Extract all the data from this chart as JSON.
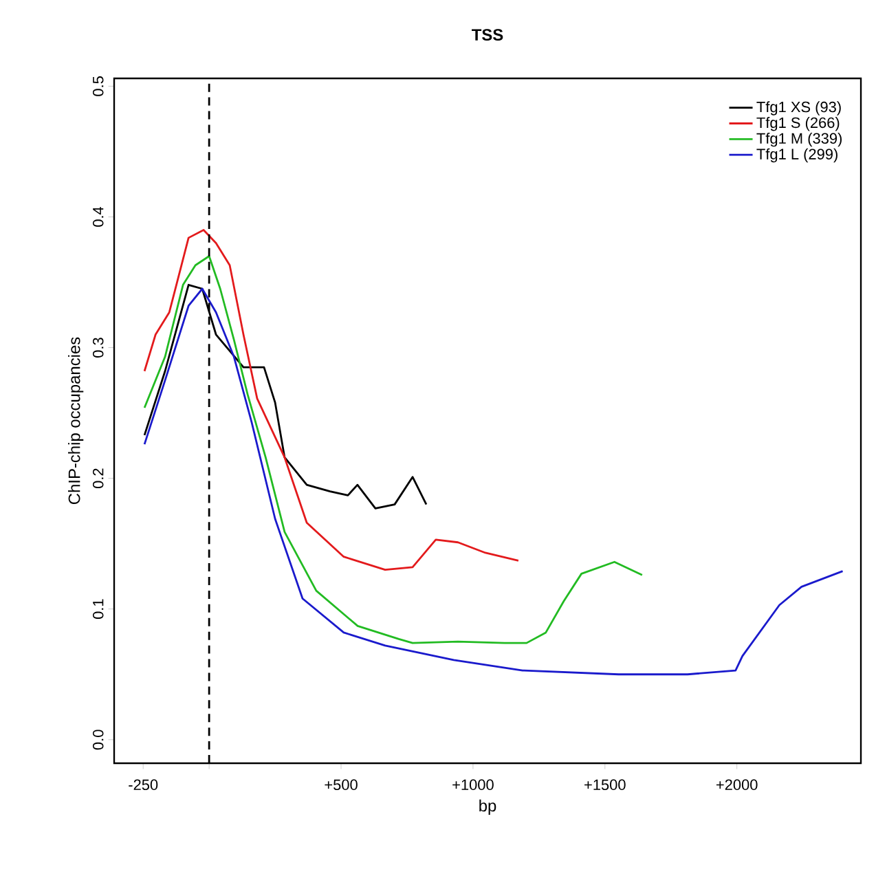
{
  "chart_data": {
    "type": "line",
    "title": "TSS",
    "xlabel": "bp",
    "ylabel": "ChIP-chip occupancies",
    "xlim": [
      -360,
      2470
    ],
    "ylim": [
      -0.018,
      0.506
    ],
    "xticks": [
      {
        "value": -250,
        "label": "-250"
      },
      {
        "value": 0,
        "label": null
      },
      {
        "value": 500,
        "label": "+500"
      },
      {
        "value": 1000,
        "label": "+1000"
      },
      {
        "value": 1500,
        "label": "+1500"
      },
      {
        "value": 2000,
        "label": "+2000"
      }
    ],
    "yticks": [
      {
        "value": 0,
        "label": "0.0"
      },
      {
        "value": 0.1,
        "label": "0.1"
      },
      {
        "value": 0.2,
        "label": "0.2"
      },
      {
        "value": 0.3,
        "label": "0.3"
      },
      {
        "value": 0.4,
        "label": "0.4"
      },
      {
        "value": 0.5,
        "label": "0.5"
      }
    ],
    "grid": false,
    "legend": "top right",
    "line_style": "solid",
    "ref_lines": [
      {
        "axis": "x",
        "value": 0,
        "color": "#000000",
        "line_style": "dashed"
      }
    ],
    "series": [
      {
        "name": "Tfg1 XS (93)",
        "color": "#000000",
        "x": [
          -245,
          -167,
          -78,
          -26,
          26,
          130,
          208,
          250,
          286,
          370,
          458,
          526,
          562,
          630,
          703,
          771,
          823
        ],
        "values": [
          0.233,
          0.282,
          0.348,
          0.345,
          0.31,
          0.285,
          0.285,
          0.258,
          0.216,
          0.195,
          0.19,
          0.187,
          0.195,
          0.177,
          0.18,
          0.201,
          0.18
        ]
      },
      {
        "name": "Tfg1 S (266)",
        "color": "#e31a1c",
        "x": [
          -245,
          -203,
          -151,
          -78,
          -21,
          26,
          78,
          130,
          182,
          286,
          370,
          510,
          667,
          771,
          859,
          943,
          1047,
          1172
        ],
        "values": [
          0.282,
          0.31,
          0.327,
          0.384,
          0.39,
          0.38,
          0.363,
          0.31,
          0.261,
          0.216,
          0.166,
          0.14,
          0.13,
          0.132,
          0.153,
          0.151,
          0.143,
          0.137
        ]
      },
      {
        "name": "Tfg1 M (339)",
        "color": "#22bb22",
        "x": [
          -245,
          -167,
          -99,
          -52,
          0,
          42,
          94,
          146,
          214,
          286,
          406,
          563,
          719,
          771,
          943,
          1120,
          1203,
          1276,
          1344,
          1411,
          1536,
          1641
        ],
        "values": [
          0.254,
          0.293,
          0.348,
          0.363,
          0.37,
          0.345,
          0.306,
          0.264,
          0.216,
          0.159,
          0.114,
          0.087,
          0.077,
          0.074,
          0.075,
          0.074,
          0.074,
          0.082,
          0.106,
          0.127,
          0.136,
          0.126
        ]
      },
      {
        "name": "Tfg1 L (299)",
        "color": "#1a1acc",
        "x": [
          -245,
          -167,
          -78,
          -26,
          26,
          94,
          161,
          250,
          354,
          510,
          667,
          927,
          1188,
          1552,
          1813,
          1995,
          2021,
          2161,
          2245,
          2401
        ],
        "values": [
          0.226,
          0.275,
          0.332,
          0.345,
          0.327,
          0.293,
          0.243,
          0.169,
          0.108,
          0.082,
          0.072,
          0.061,
          0.053,
          0.05,
          0.05,
          0.053,
          0.064,
          0.103,
          0.117,
          0.129
        ]
      }
    ]
  }
}
